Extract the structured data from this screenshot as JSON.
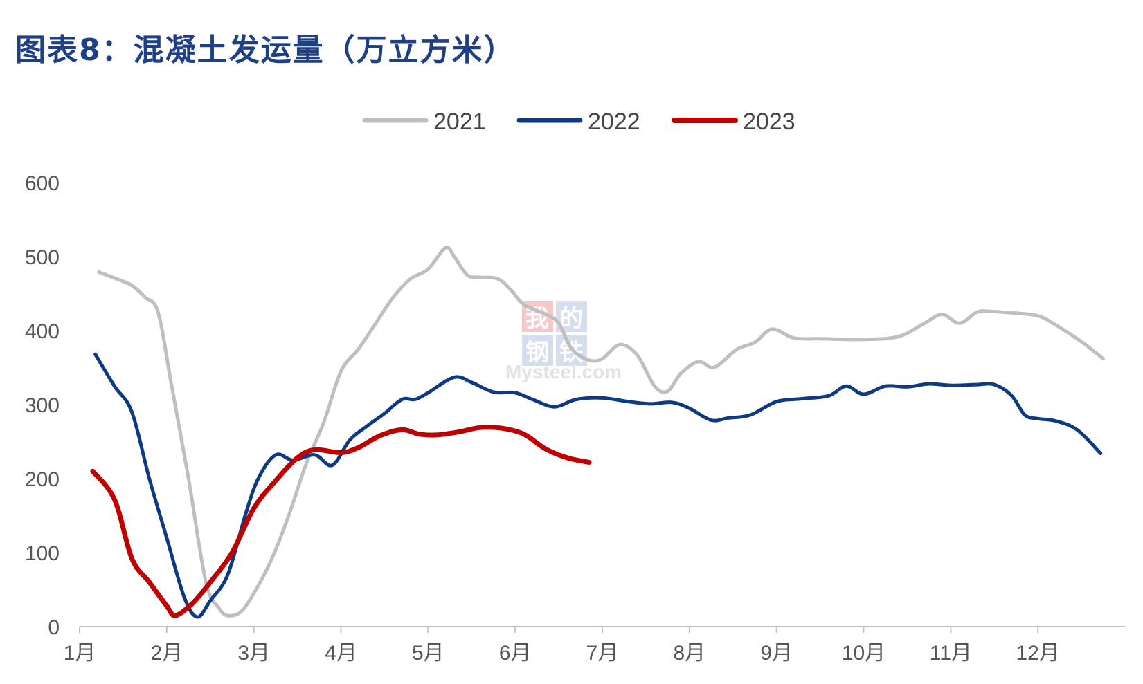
{
  "title": "图表8：混凝土发运量（万立方米）",
  "watermark": {
    "box": [
      "我",
      "的",
      "钢",
      "铁"
    ],
    "text": "Mysteel.com"
  },
  "colors": {
    "title": "#1f3f86",
    "2021": "#bfbfbf",
    "2022": "#0e3a83",
    "2023": "#c00000",
    "axis": "#bfbfbf"
  },
  "chart_data": {
    "type": "line",
    "title": "图表8：混凝土发运量（万立方米）",
    "xlabel": "",
    "ylabel": "",
    "ylim": [
      0,
      600
    ],
    "xlim": [
      1,
      13
    ],
    "yticks": [
      "0",
      "100",
      "200",
      "300",
      "400",
      "500",
      "600"
    ],
    "xticks": [
      "1月",
      "2月",
      "3月",
      "4月",
      "5月",
      "6月",
      "7月",
      "8月",
      "9月",
      "10月",
      "11月",
      "12月"
    ],
    "legend": "top-center",
    "grid": false,
    "series": [
      {
        "name": "2021",
        "color": "#bfbfbf",
        "points": [
          [
            1.22,
            479
          ],
          [
            1.4,
            471
          ],
          [
            1.6,
            461
          ],
          [
            1.75,
            445
          ],
          [
            1.9,
            425
          ],
          [
            2.05,
            330
          ],
          [
            2.25,
            200
          ],
          [
            2.45,
            60
          ],
          [
            2.6,
            25
          ],
          [
            2.7,
            15
          ],
          [
            2.85,
            20
          ],
          [
            3.0,
            45
          ],
          [
            3.2,
            90
          ],
          [
            3.4,
            150
          ],
          [
            3.6,
            220
          ],
          [
            3.8,
            275
          ],
          [
            4.0,
            345
          ],
          [
            4.2,
            375
          ],
          [
            4.4,
            410
          ],
          [
            4.6,
            445
          ],
          [
            4.8,
            470
          ],
          [
            5.0,
            483
          ],
          [
            5.2,
            512
          ],
          [
            5.3,
            500
          ],
          [
            5.45,
            475
          ],
          [
            5.6,
            472
          ],
          [
            5.8,
            470
          ],
          [
            5.95,
            455
          ],
          [
            6.1,
            435
          ],
          [
            6.35,
            422
          ],
          [
            6.5,
            410
          ],
          [
            6.65,
            375
          ],
          [
            6.85,
            360
          ],
          [
            7.0,
            362
          ],
          [
            7.2,
            381
          ],
          [
            7.4,
            367
          ],
          [
            7.6,
            325
          ],
          [
            7.75,
            318
          ],
          [
            7.9,
            342
          ],
          [
            8.1,
            358
          ],
          [
            8.25,
            350
          ],
          [
            8.35,
            355
          ],
          [
            8.55,
            375
          ],
          [
            8.75,
            384
          ],
          [
            8.95,
            402
          ],
          [
            9.2,
            390
          ],
          [
            9.5,
            389
          ],
          [
            10.0,
            388
          ],
          [
            10.4,
            392
          ],
          [
            10.7,
            410
          ],
          [
            10.9,
            422
          ],
          [
            11.1,
            410
          ],
          [
            11.3,
            425
          ],
          [
            11.45,
            426
          ],
          [
            11.7,
            424
          ],
          [
            12.0,
            420
          ],
          [
            12.2,
            408
          ],
          [
            12.5,
            385
          ],
          [
            12.75,
            362
          ]
        ]
      },
      {
        "name": "2022",
        "color": "#0e3a83",
        "points": [
          [
            1.18,
            368
          ],
          [
            1.4,
            325
          ],
          [
            1.6,
            290
          ],
          [
            1.8,
            200
          ],
          [
            2.0,
            120
          ],
          [
            2.2,
            40
          ],
          [
            2.35,
            13
          ],
          [
            2.5,
            35
          ],
          [
            2.7,
            70
          ],
          [
            2.9,
            150
          ],
          [
            3.05,
            200
          ],
          [
            3.25,
            232
          ],
          [
            3.45,
            225
          ],
          [
            3.7,
            232
          ],
          [
            3.9,
            218
          ],
          [
            4.1,
            252
          ],
          [
            4.3,
            271
          ],
          [
            4.5,
            288
          ],
          [
            4.7,
            307
          ],
          [
            4.85,
            307
          ],
          [
            5.0,
            316
          ],
          [
            5.3,
            337
          ],
          [
            5.5,
            330
          ],
          [
            5.75,
            317
          ],
          [
            6.0,
            316
          ],
          [
            6.2,
            307
          ],
          [
            6.45,
            297
          ],
          [
            6.7,
            307
          ],
          [
            7.0,
            309
          ],
          [
            7.3,
            304
          ],
          [
            7.55,
            301
          ],
          [
            7.8,
            303
          ],
          [
            8.0,
            295
          ],
          [
            8.25,
            279
          ],
          [
            8.45,
            282
          ],
          [
            8.7,
            286
          ],
          [
            9.0,
            304
          ],
          [
            9.3,
            308
          ],
          [
            9.6,
            312
          ],
          [
            9.8,
            325
          ],
          [
            10.0,
            314
          ],
          [
            10.25,
            325
          ],
          [
            10.5,
            324
          ],
          [
            10.75,
            328
          ],
          [
            11.0,
            326
          ],
          [
            11.3,
            327
          ],
          [
            11.5,
            327
          ],
          [
            11.7,
            312
          ],
          [
            11.85,
            286
          ],
          [
            12.0,
            281
          ],
          [
            12.2,
            278
          ],
          [
            12.45,
            266
          ],
          [
            12.72,
            234
          ]
        ]
      },
      {
        "name": "2023",
        "color": "#c00000",
        "points": [
          [
            1.15,
            210
          ],
          [
            1.4,
            172
          ],
          [
            1.6,
            92
          ],
          [
            1.8,
            60
          ],
          [
            2.0,
            28
          ],
          [
            2.1,
            15
          ],
          [
            2.3,
            32
          ],
          [
            2.5,
            60
          ],
          [
            2.75,
            100
          ],
          [
            3.0,
            160
          ],
          [
            3.25,
            197
          ],
          [
            3.5,
            228
          ],
          [
            3.7,
            239
          ],
          [
            4.0,
            235
          ],
          [
            4.2,
            242
          ],
          [
            4.45,
            258
          ],
          [
            4.7,
            266
          ],
          [
            4.9,
            260
          ],
          [
            5.1,
            259
          ],
          [
            5.35,
            263
          ],
          [
            5.6,
            269
          ],
          [
            5.85,
            268
          ],
          [
            6.1,
            260
          ],
          [
            6.35,
            240
          ],
          [
            6.6,
            228
          ],
          [
            6.85,
            222
          ]
        ]
      }
    ]
  }
}
